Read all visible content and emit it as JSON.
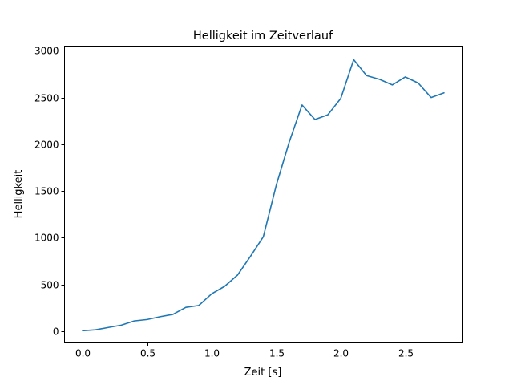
{
  "chart_data": {
    "type": "line",
    "title": "Helligkeit im Zeitverlauf",
    "xlabel": "Zeit [s]",
    "ylabel": "Helligkeit",
    "xlim": [
      -0.14,
      2.94
    ],
    "ylim": [
      -125,
      3050
    ],
    "xticks": [
      0.0,
      0.5,
      1.0,
      1.5,
      2.0,
      2.5
    ],
    "xtick_labels": [
      "0.0",
      "0.5",
      "1.0",
      "1.5",
      "2.0",
      "2.5"
    ],
    "yticks": [
      0,
      500,
      1000,
      1500,
      2000,
      2500,
      3000
    ],
    "ytick_labels": [
      "0",
      "500",
      "1000",
      "1500",
      "2000",
      "2500",
      "3000"
    ],
    "grid": false,
    "series": [
      {
        "color": "#1f77b4",
        "x": [
          0.0,
          0.1,
          0.2,
          0.3,
          0.4,
          0.5,
          0.6,
          0.7,
          0.8,
          0.9,
          1.0,
          1.1,
          1.2,
          1.3,
          1.4,
          1.5,
          1.6,
          1.7,
          1.8,
          1.9,
          2.0,
          2.1,
          2.2,
          2.3,
          2.4,
          2.5,
          2.6,
          2.7,
          2.8
        ],
        "y": [
          5,
          15,
          40,
          65,
          110,
          125,
          155,
          180,
          255,
          275,
          400,
          480,
          600,
          800,
          1010,
          1560,
          2020,
          2420,
          2265,
          2315,
          2490,
          2905,
          2735,
          2695,
          2635,
          2720,
          2655,
          2500,
          2550
        ]
      }
    ]
  }
}
